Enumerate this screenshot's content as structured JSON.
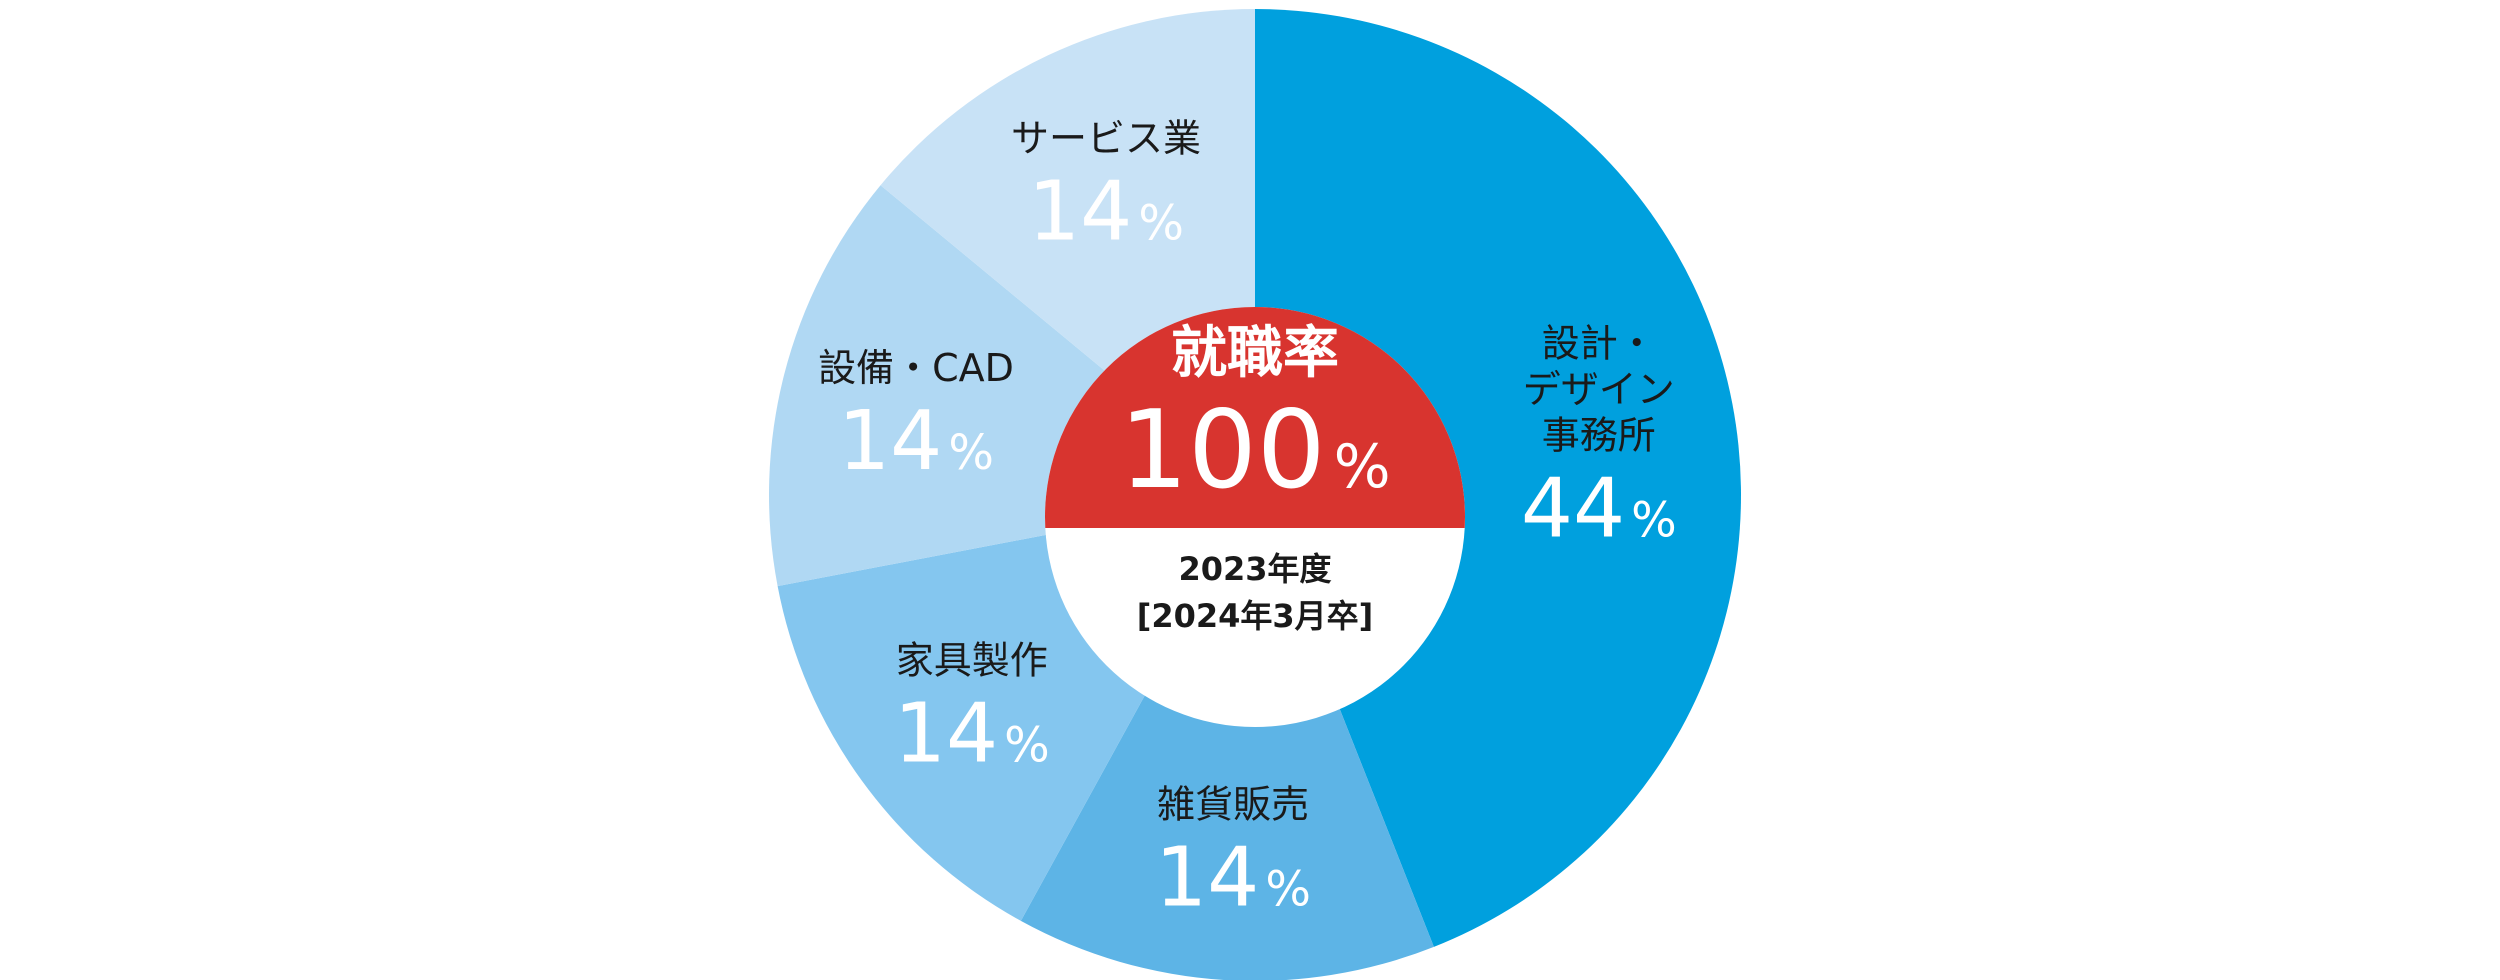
{
  "chart_data": {
    "type": "pie",
    "slices": [
      {
        "label_lines": [
          "設計・",
          "デザイン",
          "事務所"
        ],
        "value": 44,
        "value_text": "44",
        "color": "#00a0de"
      },
      {
        "label_lines": [
          "雑貨販売"
        ],
        "value": 14,
        "value_text": "14",
        "color": "#5db4e6"
      },
      {
        "label_lines": [
          "家具製作"
        ],
        "value": 14,
        "value_text": "14",
        "color": "#84c6ef"
      },
      {
        "label_lines": [
          "設備・CAD"
        ],
        "value": 14,
        "value_text": "14",
        "color": "#b0d8f3"
      },
      {
        "label_lines": [
          "サービス業"
        ],
        "value": 14,
        "value_text": "14",
        "color": "#c8e2f6"
      }
    ],
    "value_unit": "%",
    "start_angle_deg": 0,
    "direction": "clockwise"
  },
  "center": {
    "title": "就職率",
    "rate_value": "100",
    "rate_unit": "%",
    "year_line1": "2023年度",
    "year_line2": "[2024年3月卒]",
    "top_color": "#d8342f",
    "bottom_color": "#ffffff"
  }
}
